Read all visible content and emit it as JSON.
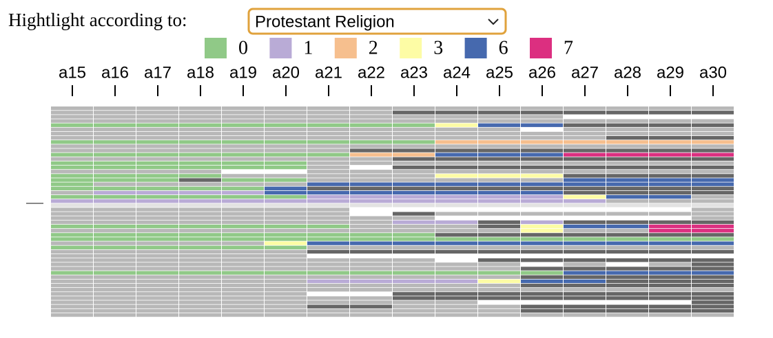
{
  "highlight_label": "Hightlight according to:",
  "select": {
    "value": "Protestant Religion"
  },
  "legend": [
    {
      "label": "0",
      "color": "#90c987"
    },
    {
      "label": "1",
      "color": "#b9abd6"
    },
    {
      "label": "2",
      "color": "#f6bf8e"
    },
    {
      "label": "3",
      "color": "#fdfca5"
    },
    {
      "label": "6",
      "color": "#4669ae"
    },
    {
      "label": "7",
      "color": "#dc2f80"
    }
  ],
  "columns": [
    "a15",
    "a16",
    "a17",
    "a18",
    "a19",
    "a20",
    "a21",
    "a22",
    "a23",
    "a24",
    "a25",
    "a26",
    "a27",
    "a28",
    "a29",
    "a30"
  ],
  "grid": {
    "other_colors": {
      "g": "#b8b8b8",
      "d": "#666666",
      "w": "#ffffff",
      "l": "#e2e2e2"
    },
    "rows": [
      "gggggggggggggggg",
      "ggggggggdddddddd",
      "ggggggggggggwwww",
      "gggggggggggggggg",
      "000000000366dddd",
      "gggggggggggwgggg",
      "gggggggggggggggg",
      "gggggggggggggddd",
      "0000000002222222",
      "gggggggggggggggg",
      "gggggggddddddddd",
      "0000000226667777",
      "ggggggggdddddddd",
      "000000gggggggggg",
      "000000gwdddddddd",
      "ggggwwgggggggggg",
      "0000ggggg333dddd",
      "000d00gggggg6666",
      "0ggggg6666666666",
      "000006dddddddddd",
      "g11116666666dddd",
      "000000111111366g",
      "1111111111111ggg",
      "llllllllllllllll",
      "gggggggwwwwwwwwg",
      "gggggggwdggggggg",
      "gggggggggwwwwwwg",
      "gggggggg11d1dddd",
      "0000000gggd36677",
      "ggggggggggg3gg77",
      "000000000ddddddd",
      "0000000000000000",
      "ggggg36666666666",
      "000000gggggggggg",
      "ggggggdddddddddd",
      "ggggggwwwwwwwwww",
      "gggggggggwdddddd",
      "gggggggggggwgwgd",
      "gggggggggggddddd",
      "0000000000006666",
      "gggggggggggddddd",
      "gggggg1111366ddd",
      "gggggggggggddddd",
      "gggggggggggggggg",
      "ggggggwwdddddddd",
      "ggggggggdddddddd",
      "ggggggggggwwwwwd",
      "ggggggddgggddddd",
      "gggggggggggddddd",
      "gggggggggggggggg"
    ]
  }
}
